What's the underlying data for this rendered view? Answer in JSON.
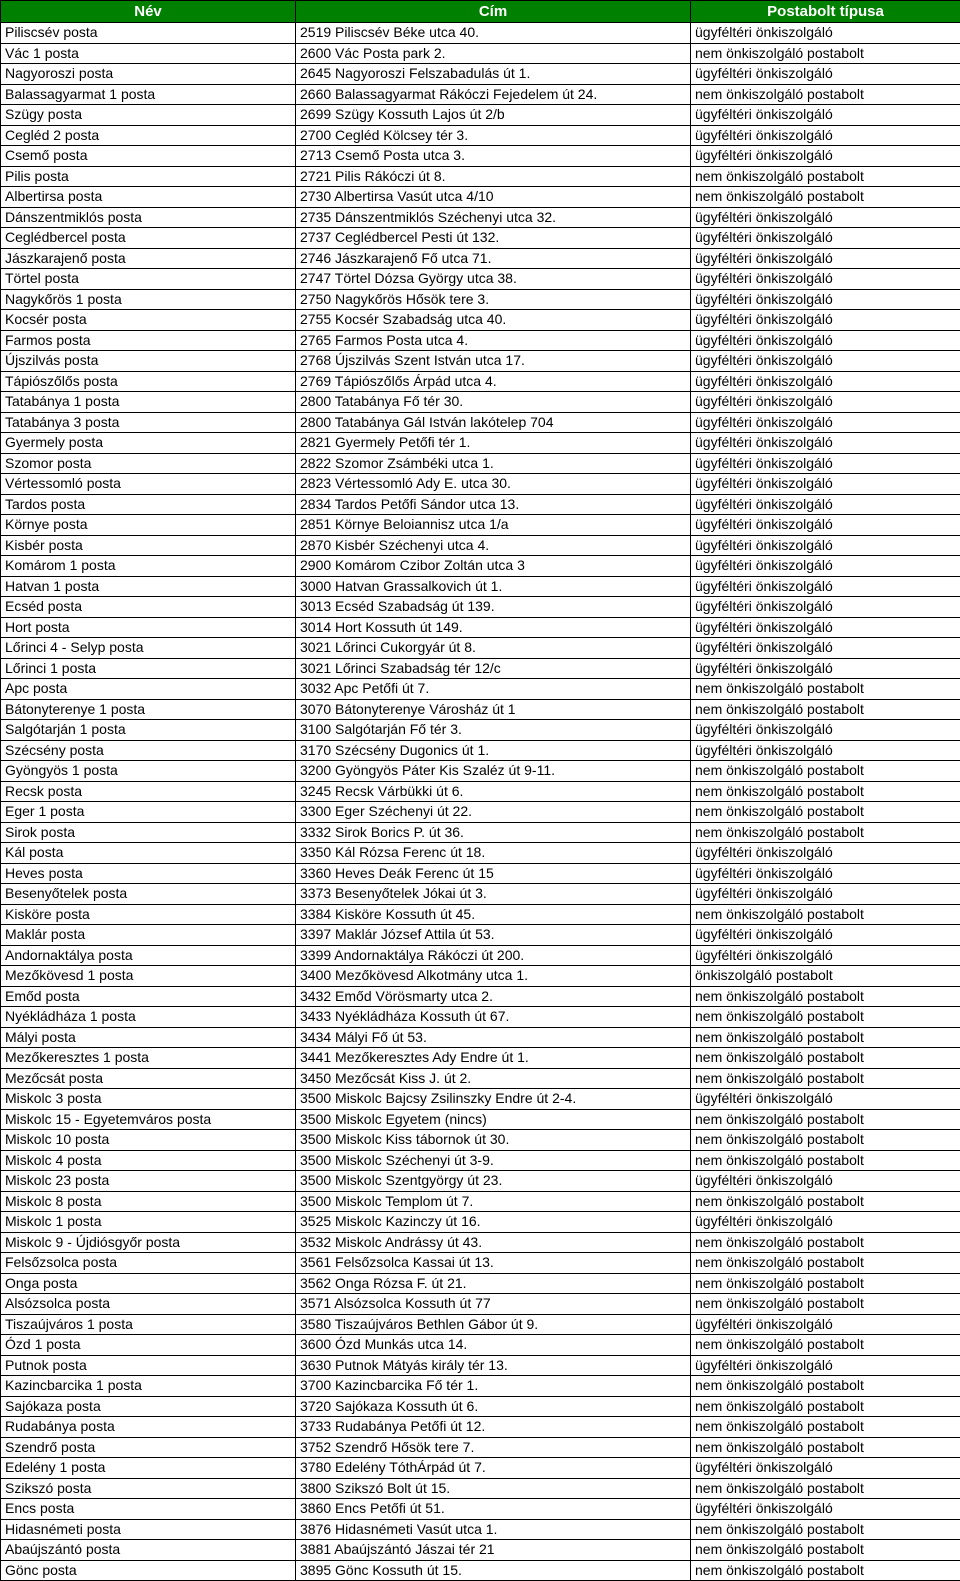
{
  "table": {
    "header_bg": "#008000",
    "header_fg": "#ffffff",
    "border_color": "#000000",
    "columns": [
      "Név",
      "Cím",
      "Postabolt típusa"
    ],
    "rows": [
      [
        "Piliscsév posta",
        "2519 Piliscsév Béke utca 40.",
        "ügyféltéri önkiszolgáló"
      ],
      [
        "Vác 1 posta",
        "2600 Vác Posta park 2.",
        "nem önkiszolgáló postabolt"
      ],
      [
        "Nagyoroszi posta",
        "2645 Nagyoroszi Felszabadulás út 1.",
        "ügyféltéri önkiszolgáló"
      ],
      [
        "Balassagyarmat 1 posta",
        "2660 Balassagyarmat Rákóczi Fejedelem út 24.",
        "nem önkiszolgáló postabolt"
      ],
      [
        "Szügy posta",
        "2699 Szügy Kossuth Lajos út 2/b",
        "ügyféltéri önkiszolgáló"
      ],
      [
        "Cegléd 2 posta",
        "2700 Cegléd Kölcsey tér 3.",
        "ügyféltéri önkiszolgáló"
      ],
      [
        "Csemő posta",
        "2713 Csemő Posta utca 3.",
        "ügyféltéri önkiszolgáló"
      ],
      [
        "Pilis posta",
        "2721 Pilis Rákóczi út 8.",
        "nem önkiszolgáló postabolt"
      ],
      [
        "Albertirsa posta",
        "2730 Albertirsa Vasút utca 4/10",
        "nem önkiszolgáló postabolt"
      ],
      [
        "Dánszentmiklós posta",
        "2735 Dánszentmiklós Széchenyi utca 32.",
        "ügyféltéri önkiszolgáló"
      ],
      [
        "Ceglédbercel posta",
        "2737 Ceglédbercel Pesti út 132.",
        "ügyféltéri önkiszolgáló"
      ],
      [
        "Jászkarajenő posta",
        "2746 Jászkarajenő Fő utca 71.",
        "ügyféltéri önkiszolgáló"
      ],
      [
        "Törtel posta",
        "2747 Törtel Dózsa György utca 38.",
        "ügyféltéri önkiszolgáló"
      ],
      [
        "Nagykőrös 1 posta",
        "2750 Nagykőrös Hősök tere 3.",
        "ügyféltéri önkiszolgáló"
      ],
      [
        "Kocsér posta",
        "2755 Kocsér Szabadság utca 40.",
        "ügyféltéri önkiszolgáló"
      ],
      [
        "Farmos posta",
        "2765 Farmos Posta utca 4.",
        "ügyféltéri önkiszolgáló"
      ],
      [
        "Újszilvás posta",
        "2768 Újszilvás Szent István utca 17.",
        "ügyféltéri önkiszolgáló"
      ],
      [
        "Tápiószőlős posta",
        "2769 Tápiószőlős Árpád utca 4.",
        "ügyféltéri önkiszolgáló"
      ],
      [
        "Tatabánya 1 posta",
        "2800 Tatabánya Fő tér 30.",
        "ügyféltéri önkiszolgáló"
      ],
      [
        "Tatabánya 3 posta",
        "2800 Tatabánya Gál István lakótelep 704",
        "ügyféltéri önkiszolgáló"
      ],
      [
        "Gyermely posta",
        "2821 Gyermely Petőfi tér 1.",
        "ügyféltéri önkiszolgáló"
      ],
      [
        "Szomor posta",
        "2822 Szomor Zsámbéki utca 1.",
        "ügyféltéri önkiszolgáló"
      ],
      [
        "Vértessomló posta",
        "2823 Vértessomló Ady E. utca 30.",
        "ügyféltéri önkiszolgáló"
      ],
      [
        "Tardos posta",
        "2834 Tardos Petőfi Sándor utca 13.",
        "ügyféltéri önkiszolgáló"
      ],
      [
        "Környe posta",
        "2851 Környe Beloiannisz utca 1/a",
        "ügyféltéri önkiszolgáló"
      ],
      [
        "Kisbér posta",
        "2870 Kisbér Széchenyi utca 4.",
        "ügyféltéri önkiszolgáló"
      ],
      [
        "Komárom 1 posta",
        "2900 Komárom Czibor Zoltán utca 3",
        "ügyféltéri önkiszolgáló"
      ],
      [
        "Hatvan 1 posta",
        "3000 Hatvan Grassalkovich út 1.",
        "ügyféltéri önkiszolgáló"
      ],
      [
        "Ecséd posta",
        "3013 Ecséd Szabadság út 139.",
        "ügyféltéri önkiszolgáló"
      ],
      [
        "Hort posta",
        "3014 Hort Kossuth út 149.",
        "ügyféltéri önkiszolgáló"
      ],
      [
        "Lőrinci 4 - Selyp posta",
        "3021 Lőrinci Cukorgyár út 8.",
        "ügyféltéri önkiszolgáló"
      ],
      [
        "Lőrinci 1 posta",
        "3021 Lőrinci Szabadság tér 12/c",
        "ügyféltéri önkiszolgáló"
      ],
      [
        "Apc posta",
        "3032 Apc Petőfi út 7.",
        "nem önkiszolgáló postabolt"
      ],
      [
        "Bátonyterenye 1 posta",
        "3070 Bátonyterenye Városház út 1",
        "nem önkiszolgáló postabolt"
      ],
      [
        "Salgótarján 1 posta",
        "3100 Salgótarján Fő tér 3.",
        "ügyféltéri önkiszolgáló"
      ],
      [
        "Szécsény posta",
        "3170 Szécsény Dugonics út 1.",
        "ügyféltéri önkiszolgáló"
      ],
      [
        "Gyöngyös 1 posta",
        "3200 Gyöngyös Páter Kis Szaléz út 9-11.",
        "nem önkiszolgáló postabolt"
      ],
      [
        "Recsk posta",
        "3245 Recsk Várbükki út 6.",
        "nem önkiszolgáló postabolt"
      ],
      [
        "Eger 1 posta",
        "3300 Eger Széchenyi út 22.",
        "nem önkiszolgáló postabolt"
      ],
      [
        "Sirok posta",
        "3332 Sirok Borics P. út 36.",
        "nem önkiszolgáló postabolt"
      ],
      [
        "Kál posta",
        "3350 Kál Rózsa Ferenc út 18.",
        "ügyféltéri önkiszolgáló"
      ],
      [
        "Heves posta",
        "3360 Heves Deák Ferenc út 15",
        "ügyféltéri önkiszolgáló"
      ],
      [
        "Besenyőtelek posta",
        "3373 Besenyőtelek Jókai út 3.",
        "ügyféltéri önkiszolgáló"
      ],
      [
        "Kisköre posta",
        "3384 Kisköre Kossuth út 45.",
        "nem önkiszolgáló postabolt"
      ],
      [
        "Maklár posta",
        "3397 Maklár József Attila út 53.",
        "ügyféltéri önkiszolgáló"
      ],
      [
        "Andornaktálya posta",
        "3399 Andornaktálya Rákóczi út 200.",
        "ügyféltéri önkiszolgáló"
      ],
      [
        "Mezőkövesd 1 posta",
        "3400 Mezőkövesd Alkotmány utca 1.",
        "önkiszolgáló postabolt"
      ],
      [
        "Emőd posta",
        "3432 Emőd Vörösmarty utca 2.",
        "nem önkiszolgáló postabolt"
      ],
      [
        "Nyékládháza 1 posta",
        "3433 Nyékládháza Kossuth út 67.",
        "nem önkiszolgáló postabolt"
      ],
      [
        "Mályi posta",
        "3434 Mályi Fő út 53.",
        "nem önkiszolgáló postabolt"
      ],
      [
        "Mezőkeresztes 1 posta",
        "3441 Mezőkeresztes Ady Endre út 1.",
        "nem önkiszolgáló postabolt"
      ],
      [
        "Mezőcsát posta",
        "3450 Mezőcsát Kiss J. út 2.",
        "nem önkiszolgáló postabolt"
      ],
      [
        "Miskolc 3 posta",
        "3500 Miskolc Bajcsy Zsilinszky Endre út 2-4.",
        "ügyféltéri önkiszolgáló"
      ],
      [
        "Miskolc 15 - Egyetemváros posta",
        "3500 Miskolc Egyetem (nincs)",
        "nem önkiszolgáló postabolt"
      ],
      [
        "Miskolc 10 posta",
        "3500 Miskolc Kiss tábornok út 30.",
        "nem önkiszolgáló postabolt"
      ],
      [
        "Miskolc 4 posta",
        "3500 Miskolc Széchenyi út 3-9.",
        "nem önkiszolgáló postabolt"
      ],
      [
        "Miskolc 23 posta",
        "3500 Miskolc Szentgyörgy út 23.",
        "ügyféltéri önkiszolgáló"
      ],
      [
        "Miskolc 8 posta",
        "3500 Miskolc Templom út 7.",
        "nem önkiszolgáló postabolt"
      ],
      [
        "Miskolc 1 posta",
        "3525 Miskolc Kazinczy út 16.",
        "ügyféltéri önkiszolgáló"
      ],
      [
        "Miskolc 9 - Újdiósgyőr posta",
        "3532 Miskolc Andrássy út 43.",
        "nem önkiszolgáló postabolt"
      ],
      [
        "Felsőzsolca posta",
        "3561 Felsőzsolca Kassai út 13.",
        "nem önkiszolgáló postabolt"
      ],
      [
        "Onga posta",
        "3562 Onga Rózsa F. út 21.",
        "nem önkiszolgáló postabolt"
      ],
      [
        "Alsózsolca posta",
        "3571 Alsózsolca Kossuth út 77",
        "nem önkiszolgáló postabolt"
      ],
      [
        "Tiszaújváros 1 posta",
        "3580 Tiszaújváros Bethlen Gábor út 9.",
        "ügyféltéri önkiszolgáló"
      ],
      [
        "Ózd 1 posta",
        "3600 Ózd Munkás utca 14.",
        "nem önkiszolgáló postabolt"
      ],
      [
        "Putnok posta",
        "3630 Putnok Mátyás király tér 13.",
        "ügyféltéri önkiszolgáló"
      ],
      [
        "Kazincbarcika 1 posta",
        "3700 Kazincbarcika Fő tér 1.",
        "nem önkiszolgáló postabolt"
      ],
      [
        "Sajókaza posta",
        "3720 Sajókaza Kossuth út 6.",
        "nem önkiszolgáló postabolt"
      ],
      [
        "Rudabánya posta",
        "3733 Rudabánya Petőfi út 12.",
        "nem önkiszolgáló postabolt"
      ],
      [
        "Szendrő posta",
        "3752 Szendrő Hősök tere 7.",
        "nem önkiszolgáló postabolt"
      ],
      [
        "Edelény 1 posta",
        "3780 Edelény TóthÁrpád út 7.",
        "ügyféltéri önkiszolgáló"
      ],
      [
        "Szikszó posta",
        "3800 Szikszó Bolt út 15.",
        "nem önkiszolgáló postabolt"
      ],
      [
        "Encs posta",
        "3860 Encs Petőfi út 51.",
        "ügyféltéri önkiszolgáló"
      ],
      [
        "Hidasnémeti posta",
        "3876 Hidasnémeti Vasút utca 1.",
        "nem önkiszolgáló postabolt"
      ],
      [
        "Abaújszántó posta",
        "3881 Abaújszántó Jászai tér 21",
        "nem önkiszolgáló postabolt"
      ],
      [
        "Gönc posta",
        "3895 Gönc Kossuth út 15.",
        "nem önkiszolgáló postabolt"
      ]
    ]
  }
}
